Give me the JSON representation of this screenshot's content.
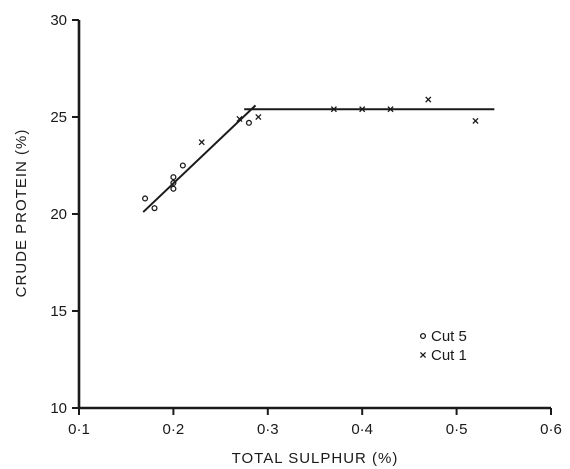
{
  "chart_data": {
    "type": "scatter",
    "title": "",
    "xlabel": "TOTAL SULPHUR (%)",
    "ylabel": "CRUDE PROTEIN (%)",
    "xlim": [
      0.1,
      0.6
    ],
    "ylim": [
      10,
      30
    ],
    "x_ticks": [
      0.1,
      0.2,
      0.3,
      0.4,
      0.5,
      0.6
    ],
    "x_tick_labels": [
      "0·1",
      "0·2",
      "0·3",
      "0·4",
      "0·5",
      "0·6"
    ],
    "y_ticks": [
      10,
      15,
      20,
      25,
      30
    ],
    "y_tick_labels": [
      "10",
      "15",
      "20",
      "25",
      "30"
    ],
    "grid": false,
    "legend_position": "bottom-right",
    "series": [
      {
        "name": "Cut 5",
        "marker": "circle",
        "points": [
          {
            "x": 0.17,
            "y": 20.8
          },
          {
            "x": 0.18,
            "y": 20.3
          },
          {
            "x": 0.2,
            "y": 21.3
          },
          {
            "x": 0.2,
            "y": 21.6
          },
          {
            "x": 0.2,
            "y": 21.9
          },
          {
            "x": 0.21,
            "y": 22.5
          },
          {
            "x": 0.28,
            "y": 24.7
          }
        ]
      },
      {
        "name": "Cut 1",
        "marker": "cross",
        "points": [
          {
            "x": 0.23,
            "y": 23.7
          },
          {
            "x": 0.27,
            "y": 24.9
          },
          {
            "x": 0.29,
            "y": 25.0
          },
          {
            "x": 0.37,
            "y": 25.4
          },
          {
            "x": 0.4,
            "y": 25.4
          },
          {
            "x": 0.43,
            "y": 25.4
          },
          {
            "x": 0.47,
            "y": 25.9
          },
          {
            "x": 0.52,
            "y": 24.8
          }
        ]
      }
    ],
    "fit_lines": [
      {
        "points": [
          {
            "x": 0.168,
            "y": 20.1
          },
          {
            "x": 0.287,
            "y": 25.6
          }
        ]
      },
      {
        "points": [
          {
            "x": 0.275,
            "y": 25.4
          },
          {
            "x": 0.54,
            "y": 25.4
          }
        ]
      }
    ]
  }
}
